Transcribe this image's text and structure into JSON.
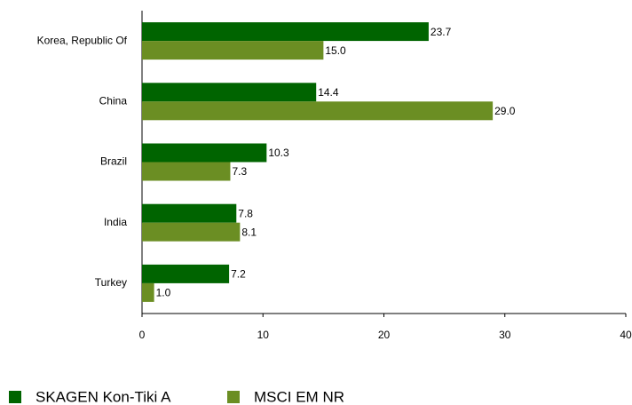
{
  "chart_data": {
    "type": "hbar",
    "categories": [
      "Korea, Republic Of",
      "China",
      "Brazil",
      "India",
      "Turkey"
    ],
    "series": [
      {
        "name": "SKAGEN Kon-Tiki A",
        "color": "#006400",
        "values": [
          23.7,
          14.4,
          10.3,
          7.8,
          7.2
        ]
      },
      {
        "name": "MSCI EM NR",
        "color": "#6b8e23",
        "values": [
          15,
          29,
          7.3,
          8.1,
          1
        ],
        "value_labels": [
          "15.0",
          "29.0",
          "7.3",
          "8.1",
          "1.0"
        ]
      }
    ],
    "xlim": [
      0,
      40
    ],
    "xticks": [
      0,
      10,
      20,
      30,
      40
    ],
    "grid": false
  }
}
